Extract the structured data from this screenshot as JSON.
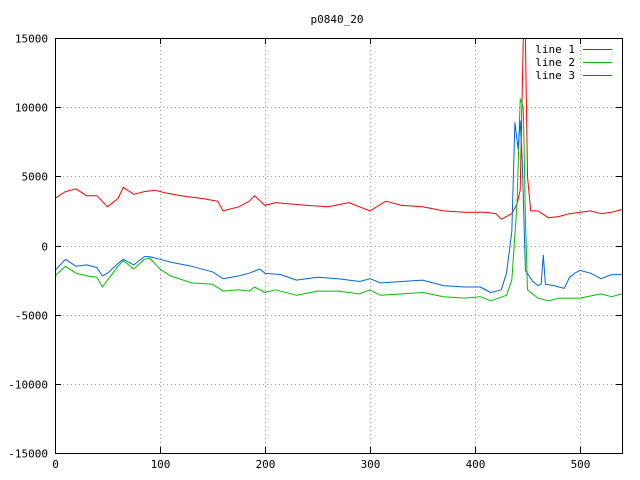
{
  "chart_data": {
    "type": "line",
    "title": "p0840_20",
    "xlabel": "",
    "ylabel": "",
    "xlim": [
      0,
      540
    ],
    "ylim": [
      -15000,
      15000
    ],
    "xticks": [
      0,
      100,
      200,
      300,
      400,
      500
    ],
    "yticks": [
      -15000,
      -10000,
      -5000,
      0,
      5000,
      10000,
      15000
    ],
    "grid": true,
    "legend_position": "top-right",
    "series": [
      {
        "name": "line 1",
        "color": "#ff0000",
        "points": [
          [
            0,
            3400
          ],
          [
            10,
            3900
          ],
          [
            20,
            4100
          ],
          [
            30,
            3600
          ],
          [
            40,
            3600
          ],
          [
            50,
            2800
          ],
          [
            60,
            3400
          ],
          [
            65,
            4200
          ],
          [
            75,
            3700
          ],
          [
            85,
            3900
          ],
          [
            95,
            4000
          ],
          [
            105,
            3800
          ],
          [
            120,
            3600
          ],
          [
            140,
            3400
          ],
          [
            155,
            3200
          ],
          [
            160,
            2500
          ],
          [
            175,
            2800
          ],
          [
            185,
            3200
          ],
          [
            190,
            3600
          ],
          [
            200,
            2900
          ],
          [
            210,
            3100
          ],
          [
            225,
            3000
          ],
          [
            240,
            2900
          ],
          [
            260,
            2800
          ],
          [
            280,
            3100
          ],
          [
            290,
            2800
          ],
          [
            300,
            2500
          ],
          [
            315,
            3200
          ],
          [
            330,
            2900
          ],
          [
            350,
            2800
          ],
          [
            370,
            2500
          ],
          [
            390,
            2400
          ],
          [
            410,
            2400
          ],
          [
            420,
            2300
          ],
          [
            425,
            1900
          ],
          [
            435,
            2300
          ],
          [
            440,
            3000
          ],
          [
            443,
            4000
          ],
          [
            446,
            15000
          ],
          [
            448,
            15000
          ],
          [
            450,
            5000
          ],
          [
            453,
            2500
          ],
          [
            460,
            2500
          ],
          [
            470,
            2000
          ],
          [
            480,
            2100
          ],
          [
            490,
            2300
          ],
          [
            510,
            2500
          ],
          [
            520,
            2300
          ],
          [
            530,
            2400
          ],
          [
            540,
            2600
          ]
        ]
      },
      {
        "name": "line 2",
        "color": "#00c000",
        "points": [
          [
            0,
            -2200
          ],
          [
            10,
            -1500
          ],
          [
            20,
            -2000
          ],
          [
            30,
            -2200
          ],
          [
            40,
            -2300
          ],
          [
            45,
            -3000
          ],
          [
            50,
            -2500
          ],
          [
            60,
            -1500
          ],
          [
            65,
            -1100
          ],
          [
            75,
            -1700
          ],
          [
            85,
            -1000
          ],
          [
            90,
            -900
          ],
          [
            100,
            -1700
          ],
          [
            110,
            -2200
          ],
          [
            130,
            -2700
          ],
          [
            150,
            -2800
          ],
          [
            160,
            -3300
          ],
          [
            175,
            -3200
          ],
          [
            185,
            -3300
          ],
          [
            190,
            -3000
          ],
          [
            200,
            -3400
          ],
          [
            210,
            -3200
          ],
          [
            230,
            -3600
          ],
          [
            250,
            -3300
          ],
          [
            270,
            -3300
          ],
          [
            290,
            -3500
          ],
          [
            300,
            -3200
          ],
          [
            310,
            -3600
          ],
          [
            330,
            -3500
          ],
          [
            350,
            -3400
          ],
          [
            370,
            -3700
          ],
          [
            390,
            -3800
          ],
          [
            405,
            -3700
          ],
          [
            415,
            -4000
          ],
          [
            430,
            -3600
          ],
          [
            435,
            -2500
          ],
          [
            440,
            3000
          ],
          [
            443,
            10600
          ],
          [
            446,
            10000
          ],
          [
            448,
            2000
          ],
          [
            450,
            -3200
          ],
          [
            460,
            -3800
          ],
          [
            470,
            -4000
          ],
          [
            480,
            -3800
          ],
          [
            500,
            -3800
          ],
          [
            520,
            -3500
          ],
          [
            530,
            -3700
          ],
          [
            540,
            -3500
          ]
        ]
      },
      {
        "name": "line 3",
        "color": "#0066dd",
        "points": [
          [
            0,
            -1800
          ],
          [
            10,
            -1000
          ],
          [
            20,
            -1500
          ],
          [
            30,
            -1400
          ],
          [
            40,
            -1600
          ],
          [
            45,
            -2200
          ],
          [
            50,
            -2000
          ],
          [
            60,
            -1300
          ],
          [
            65,
            -1000
          ],
          [
            75,
            -1400
          ],
          [
            85,
            -800
          ],
          [
            90,
            -800
          ],
          [
            100,
            -1000
          ],
          [
            110,
            -1200
          ],
          [
            130,
            -1500
          ],
          [
            150,
            -1900
          ],
          [
            160,
            -2400
          ],
          [
            175,
            -2200
          ],
          [
            185,
            -2000
          ],
          [
            195,
            -1700
          ],
          [
            200,
            -2000
          ],
          [
            215,
            -2100
          ],
          [
            230,
            -2500
          ],
          [
            250,
            -2300
          ],
          [
            270,
            -2400
          ],
          [
            290,
            -2600
          ],
          [
            300,
            -2400
          ],
          [
            310,
            -2700
          ],
          [
            330,
            -2600
          ],
          [
            350,
            -2500
          ],
          [
            370,
            -2900
          ],
          [
            390,
            -3000
          ],
          [
            405,
            -3000
          ],
          [
            415,
            -3400
          ],
          [
            425,
            -3200
          ],
          [
            430,
            -2000
          ],
          [
            435,
            1000
          ],
          [
            438,
            8900
          ],
          [
            441,
            7000
          ],
          [
            443,
            9000
          ],
          [
            445,
            6000
          ],
          [
            448,
            -1800
          ],
          [
            455,
            -2600
          ],
          [
            460,
            -2900
          ],
          [
            463,
            -2800
          ],
          [
            465,
            -700
          ],
          [
            467,
            -2800
          ],
          [
            475,
            -2900
          ],
          [
            480,
            -3000
          ],
          [
            485,
            -3100
          ],
          [
            490,
            -2300
          ],
          [
            495,
            -2000
          ],
          [
            500,
            -1800
          ],
          [
            510,
            -2000
          ],
          [
            520,
            -2400
          ],
          [
            530,
            -2100
          ],
          [
            540,
            -2100
          ]
        ]
      }
    ]
  }
}
